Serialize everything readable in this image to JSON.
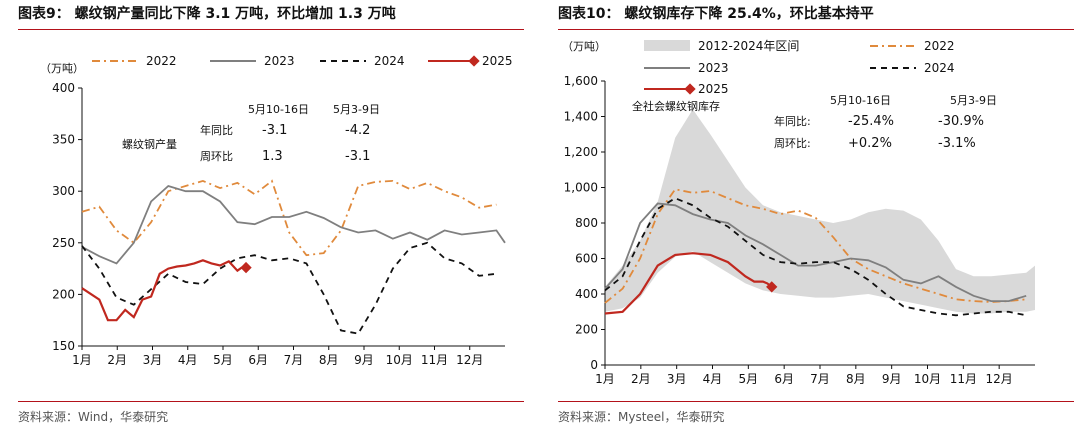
{
  "charts": [
    {
      "id": "left",
      "title": "图表9： 螺纹钢产量同比下降 3.1 万吨，环比增加 1.3 万吨",
      "source": "资料来源：Wind，华泰研究",
      "unit": "（万吨）",
      "annotation": {
        "label": "螺纹钢产量",
        "header_current": "5月10-16日",
        "header_previous": "5月3-9日",
        "rows": [
          {
            "label": "年同比",
            "current": "-3.1",
            "previous": "-4.2"
          },
          {
            "label": "周环比",
            "current": "1.3",
            "previous": "-3.1"
          }
        ]
      }
    },
    {
      "id": "right",
      "title": "图表10： 螺纹钢库存下降 25.4%，环比基本持平",
      "source": "资料来源：Mysteel，华泰研究",
      "unit": "（万吨）",
      "annotation": {
        "label": "全社会螺纹钢库存",
        "header_current": "5月10-16日",
        "header_previous": "5月3-9日",
        "rows": [
          {
            "label": "年同比:",
            "current": "-25.4%",
            "previous": "-30.9%"
          },
          {
            "label": "周环比:",
            "current": "+0.2%",
            "previous": "-3.1%"
          }
        ]
      }
    }
  ],
  "chart_data": [
    {
      "type": "line",
      "x_labels": [
        "1月",
        "2月",
        "3月",
        "4月",
        "5月",
        "6月",
        "7月",
        "8月",
        "9月",
        "10月",
        "11月",
        "12月"
      ],
      "x_range": [
        0,
        49
      ],
      "ylim": [
        150,
        400
      ],
      "yticks": [
        150,
        200,
        250,
        300,
        350,
        400
      ],
      "grid": false,
      "legend_position": "top",
      "series": [
        {
          "name": "2022",
          "color": "#e08a3c",
          "style": "dashdot",
          "x": [
            0,
            2,
            4,
            6,
            8,
            10,
            12,
            14,
            16,
            18,
            20,
            22,
            24,
            26,
            28,
            30,
            32,
            34,
            36,
            38,
            40,
            42,
            44,
            46,
            48
          ],
          "y": [
            280,
            285,
            262,
            250,
            270,
            300,
            305,
            310,
            303,
            308,
            297,
            310,
            260,
            238,
            240,
            262,
            305,
            309,
            310,
            302,
            308,
            300,
            294,
            284,
            287
          ]
        },
        {
          "name": "2023",
          "color": "#7f7f7f",
          "style": "solid",
          "x": [
            0,
            2,
            4,
            6,
            8,
            10,
            12,
            14,
            16,
            18,
            20,
            22,
            24,
            26,
            28,
            30,
            32,
            34,
            36,
            38,
            40,
            42,
            44,
            46,
            48,
            49
          ],
          "y": [
            246,
            237,
            230,
            250,
            290,
            305,
            300,
            300,
            290,
            270,
            268,
            275,
            275,
            280,
            274,
            265,
            260,
            262,
            254,
            260,
            253,
            262,
            258,
            260,
            262,
            250
          ]
        },
        {
          "name": "2024",
          "color": "#111111",
          "style": "dashed",
          "x": [
            0,
            2,
            4,
            6,
            8,
            10,
            12,
            14,
            16,
            18,
            20,
            22,
            24,
            26,
            28,
            30,
            32,
            34,
            36,
            38,
            40,
            42,
            44,
            46,
            48
          ],
          "y": [
            247,
            225,
            197,
            190,
            205,
            220,
            212,
            210,
            225,
            235,
            238,
            233,
            235,
            230,
            200,
            165,
            162,
            190,
            225,
            245,
            250,
            235,
            230,
            218,
            220
          ]
        },
        {
          "name": "2025",
          "color": "#c0281f",
          "style": "solid-marker",
          "x": [
            0,
            2,
            3,
            4,
            5,
            6,
            7,
            8,
            9,
            10,
            11,
            12,
            13,
            14,
            15,
            16,
            17,
            18,
            18.5,
            19
          ],
          "y": [
            206,
            195,
            175,
            175,
            185,
            178,
            195,
            198,
            220,
            225,
            227,
            228,
            230,
            233,
            230,
            228,
            232,
            223,
            226,
            226
          ]
        }
      ]
    },
    {
      "type": "line",
      "x_labels": [
        "1月",
        "2月",
        "3月",
        "4月",
        "5月",
        "6月",
        "7月",
        "8月",
        "9月",
        "10月",
        "11月",
        "12月"
      ],
      "x_range": [
        0,
        49
      ],
      "ylim": [
        0,
        1600
      ],
      "yticks": [
        0,
        200,
        400,
        600,
        800,
        1000,
        1200,
        1400,
        1600
      ],
      "y_tick_labels": [
        "0",
        "200",
        "400",
        "600",
        "800",
        "1,000",
        "1,200",
        "1,400",
        "1,600"
      ],
      "grid": false,
      "legend_position": "top",
      "band": {
        "name": "2012-2024年区间",
        "color": "#d9d9d9",
        "x": [
          0,
          2,
          4,
          6,
          8,
          10,
          12,
          14,
          16,
          18,
          20,
          22,
          24,
          26,
          28,
          30,
          32,
          34,
          36,
          38,
          40,
          42,
          44,
          46,
          48,
          49
        ],
        "upper": [
          440,
          560,
          700,
          920,
          1280,
          1440,
          1300,
          1150,
          1000,
          900,
          860,
          840,
          820,
          800,
          820,
          860,
          880,
          870,
          820,
          700,
          540,
          500,
          500,
          510,
          520,
          560
        ],
        "lower": [
          300,
          320,
          380,
          520,
          610,
          640,
          580,
          520,
          460,
          420,
          400,
          390,
          380,
          380,
          390,
          400,
          380,
          360,
          340,
          320,
          300,
          290,
          290,
          300,
          300,
          310
        ]
      },
      "series": [
        {
          "name": "2022",
          "color": "#e08a3c",
          "style": "dashdot",
          "x": [
            0,
            2,
            4,
            6,
            8,
            10,
            12,
            14,
            16,
            18,
            20,
            22,
            24,
            26,
            28,
            30,
            32,
            34,
            36,
            38,
            40,
            42,
            44,
            46,
            48
          ],
          "y": [
            350,
            430,
            600,
            850,
            990,
            970,
            980,
            940,
            900,
            880,
            850,
            870,
            830,
            720,
            600,
            540,
            500,
            460,
            430,
            400,
            370,
            360,
            355,
            360,
            370
          ]
        },
        {
          "name": "2023",
          "color": "#7f7f7f",
          "style": "solid",
          "x": [
            0,
            2,
            4,
            6,
            8,
            10,
            12,
            14,
            16,
            18,
            20,
            22,
            24,
            26,
            28,
            30,
            32,
            34,
            36,
            38,
            40,
            42,
            44,
            46,
            48
          ],
          "y": [
            430,
            540,
            800,
            910,
            900,
            850,
            820,
            800,
            730,
            680,
            620,
            560,
            560,
            580,
            600,
            590,
            550,
            480,
            460,
            500,
            440,
            390,
            360,
            360,
            390
          ]
        },
        {
          "name": "2024",
          "color": "#111111",
          "style": "dashed",
          "x": [
            0,
            2,
            4,
            6,
            8,
            10,
            12,
            14,
            16,
            18,
            20,
            22,
            24,
            26,
            28,
            30,
            32,
            34,
            36,
            38,
            40,
            42,
            44,
            46,
            48
          ],
          "y": [
            420,
            500,
            700,
            880,
            940,
            900,
            830,
            780,
            700,
            620,
            580,
            570,
            580,
            580,
            540,
            480,
            400,
            330,
            310,
            290,
            280,
            290,
            300,
            300,
            280
          ]
        },
        {
          "name": "2025",
          "color": "#c0281f",
          "style": "solid-marker",
          "x": [
            0,
            2,
            4,
            6,
            8,
            10,
            12,
            14,
            16,
            17,
            18,
            18.5,
            19
          ],
          "y": [
            290,
            300,
            400,
            560,
            620,
            630,
            620,
            580,
            500,
            470,
            470,
            460,
            440
          ]
        }
      ]
    }
  ]
}
